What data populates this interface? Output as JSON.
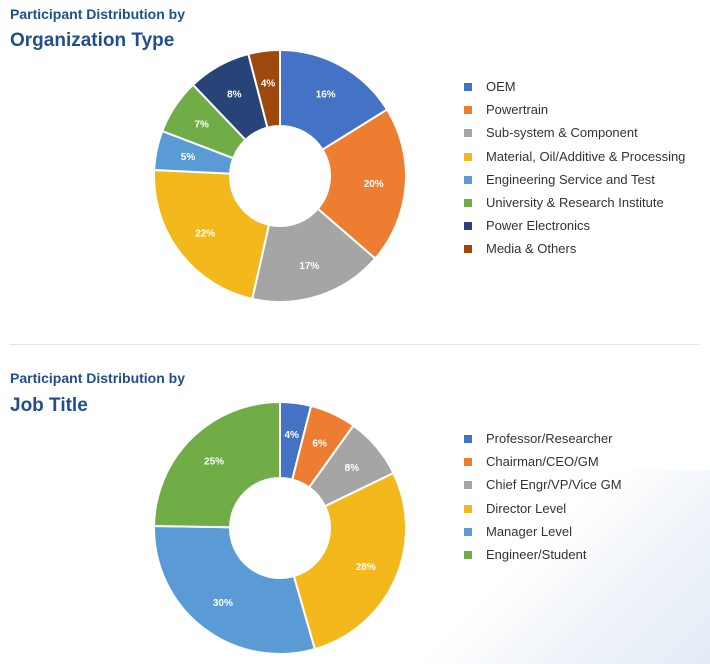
{
  "chart_data": [
    {
      "type": "pie",
      "variant": "donut",
      "subtitle": "Participant Distribution by",
      "title": "Organization Type",
      "categories": [
        "OEM",
        "Powertrain",
        "Sub-system & Component",
        "Material, Oil/Additive & Processing",
        "Engineering Service and Test",
        "University & Research Institute",
        "Power Electronics",
        "Media & Others"
      ],
      "values": [
        16,
        20,
        17,
        22,
        5,
        7,
        8,
        4
      ],
      "labels": [
        "16%",
        "20%",
        "17%",
        "22%",
        "5%",
        "7%",
        "8%",
        "4%"
      ],
      "colors": [
        "#4472c4",
        "#ed7d31",
        "#a5a5a5",
        "#f2b81c",
        "#5b9bd5",
        "#70ad47",
        "#264478",
        "#9e480e"
      ],
      "legend_position": "right"
    },
    {
      "type": "pie",
      "variant": "donut",
      "subtitle": "Participant Distribution by",
      "title": "Job Title",
      "categories": [
        "Professor/Researcher",
        "Chairman/CEO/GM",
        "Chief Engr/VP/Vice GM",
        "Director Level",
        "Manager Level",
        "Engineer/Student"
      ],
      "values": [
        4,
        6,
        8,
        28,
        30,
        25
      ],
      "labels": [
        "4%",
        "6%",
        "8%",
        "28%",
        "30%",
        "25%"
      ],
      "colors": [
        "#4472c4",
        "#ed7d31",
        "#a5a5a5",
        "#f2b81c",
        "#5b9bd5",
        "#70ad47"
      ],
      "legend_position": "right"
    }
  ]
}
